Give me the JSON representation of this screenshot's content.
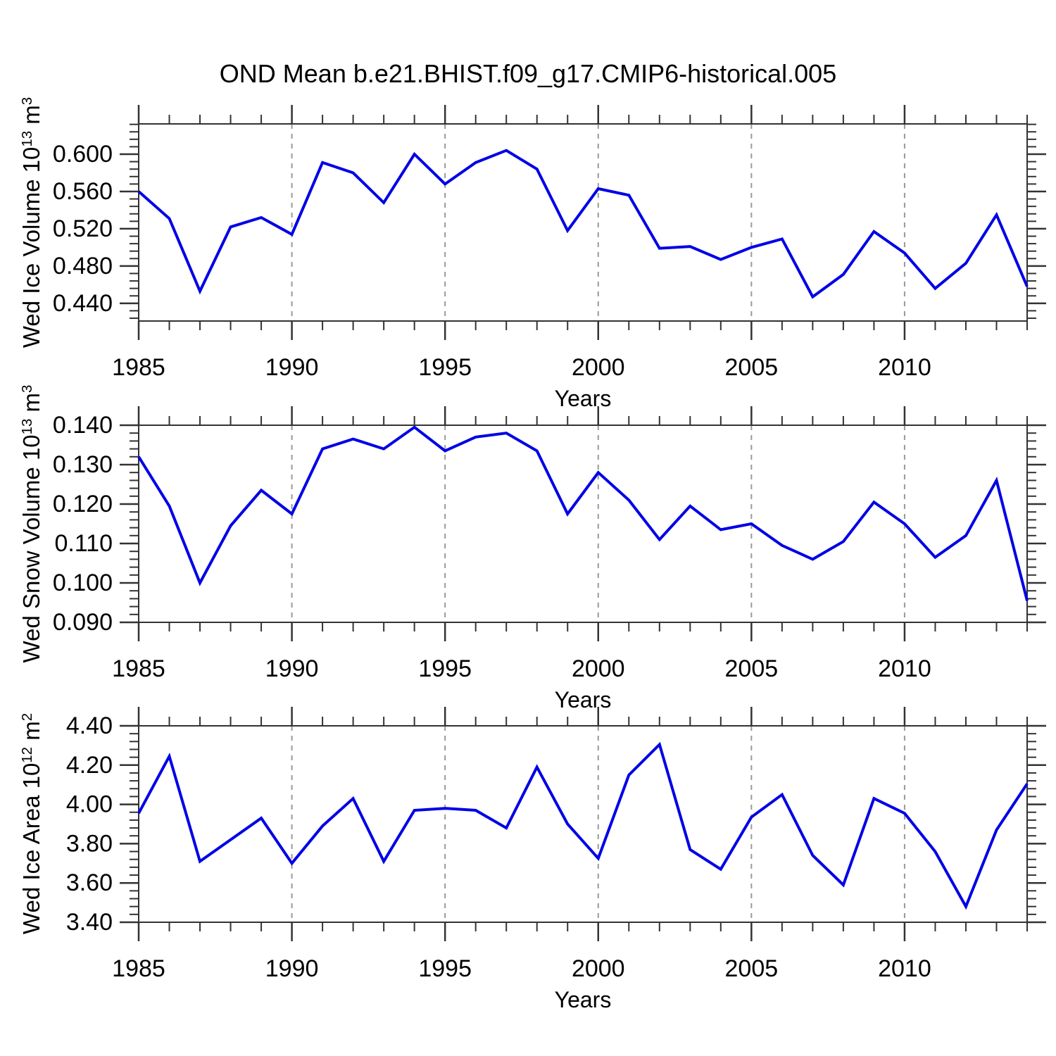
{
  "title": "OND Mean b.e21.BHIST.f09_g17.CMIP6-historical.005",
  "x_axis_label": "Years",
  "line_color": "#0000E6",
  "frame_color": "#333333",
  "gridline_color": "#999999",
  "chart_data": [
    {
      "type": "line",
      "name": "wed-ice-volume",
      "ylabel": {
        "prefix": "Wed Ice Volume 10",
        "sup": "13",
        "unit": " m",
        "unit_sup": "3"
      },
      "xlabel": "Years",
      "x": [
        1985,
        1986,
        1987,
        1988,
        1989,
        1990,
        1991,
        1992,
        1993,
        1994,
        1995,
        1996,
        1997,
        1998,
        1999,
        2000,
        2001,
        2002,
        2003,
        2004,
        2005,
        2006,
        2007,
        2008,
        2009,
        2010,
        2011,
        2012,
        2013,
        2014
      ],
      "values": [
        0.56,
        0.531,
        0.453,
        0.522,
        0.532,
        0.514,
        0.591,
        0.58,
        0.548,
        0.6,
        0.568,
        0.591,
        0.604,
        0.584,
        0.518,
        0.563,
        0.556,
        0.499,
        0.501,
        0.487,
        0.5,
        0.509,
        0.447,
        0.471,
        0.517,
        0.494,
        0.456,
        0.483,
        0.535,
        0.458
      ],
      "ylim": [
        0.421,
        0.6325
      ],
      "yticks_major": [
        0.44,
        0.48,
        0.52,
        0.56,
        0.6
      ],
      "ytick_labels": [
        "0.440",
        "0.480",
        "0.520",
        "0.560",
        "0.600"
      ],
      "yminor_step": 0.008,
      "xlim": [
        1985,
        2014
      ],
      "xticks_major": [
        1985,
        1990,
        1995,
        2000,
        2005,
        2010
      ],
      "xtick_labels": [
        "1985",
        "1990",
        "1995",
        "2000",
        "2005",
        "2010"
      ],
      "xminor_step": 1,
      "x_gridlines": [
        1990,
        1995,
        2000,
        2005,
        2010
      ],
      "grid": "dashed-vertical",
      "legend": "none"
    },
    {
      "type": "line",
      "name": "wed-snow-volume",
      "ylabel": {
        "prefix": "Wed Snow Volume 10",
        "sup": "13",
        "unit": " m",
        "unit_sup": "3"
      },
      "xlabel": "Years",
      "x": [
        1985,
        1986,
        1987,
        1988,
        1989,
        1990,
        1991,
        1992,
        1993,
        1994,
        1995,
        1996,
        1997,
        1998,
        1999,
        2000,
        2001,
        2002,
        2003,
        2004,
        2005,
        2006,
        2007,
        2008,
        2009,
        2010,
        2011,
        2012,
        2013,
        2014
      ],
      "values": [
        0.132,
        0.1195,
        0.1,
        0.1145,
        0.1235,
        0.1175,
        0.134,
        0.1365,
        0.134,
        0.1395,
        0.1335,
        0.137,
        0.138,
        0.1335,
        0.1175,
        0.128,
        0.121,
        0.111,
        0.1195,
        0.1135,
        0.115,
        0.1095,
        0.106,
        0.1105,
        0.1205,
        0.115,
        0.1065,
        0.112,
        0.126,
        0.0955
      ],
      "ylim": [
        0.09,
        0.14
      ],
      "yticks_major": [
        0.09,
        0.1,
        0.11,
        0.12,
        0.13,
        0.14
      ],
      "ytick_labels": [
        "0.090",
        "0.100",
        "0.110",
        "0.120",
        "0.130",
        "0.140"
      ],
      "yminor_step": 0.002,
      "xlim": [
        1985,
        2014
      ],
      "xticks_major": [
        1985,
        1990,
        1995,
        2000,
        2005,
        2010
      ],
      "xtick_labels": [
        "1985",
        "1990",
        "1995",
        "2000",
        "2005",
        "2010"
      ],
      "xminor_step": 1,
      "x_gridlines": [
        1990,
        1995,
        2000,
        2005,
        2010
      ],
      "grid": "dashed-vertical",
      "legend": "none"
    },
    {
      "type": "line",
      "name": "wed-ice-area",
      "ylabel": {
        "prefix": "Wed Ice Area 10",
        "sup": "12",
        "unit": " m",
        "unit_sup": "2"
      },
      "xlabel": "Years",
      "x": [
        1985,
        1986,
        1987,
        1988,
        1989,
        1990,
        1991,
        1992,
        1993,
        1994,
        1995,
        1996,
        1997,
        1998,
        1999,
        2000,
        2001,
        2002,
        2003,
        2004,
        2005,
        2006,
        2007,
        2008,
        2009,
        2010,
        2011,
        2012,
        2013,
        2014
      ],
      "values": [
        3.955,
        4.245,
        3.71,
        3.82,
        3.93,
        3.7,
        3.89,
        4.03,
        3.71,
        3.97,
        3.98,
        3.97,
        3.88,
        4.19,
        3.9,
        3.725,
        4.15,
        4.305,
        3.77,
        3.67,
        3.935,
        4.05,
        3.74,
        3.59,
        4.03,
        3.955,
        3.76,
        3.48,
        3.87,
        4.105
      ],
      "ylim": [
        3.4,
        4.4
      ],
      "yticks_major": [
        3.4,
        3.6,
        3.8,
        4.0,
        4.2,
        4.4
      ],
      "ytick_labels": [
        "3.40",
        "3.60",
        "3.80",
        "4.00",
        "4.20",
        "4.40"
      ],
      "yminor_step": 0.04,
      "xlim": [
        1985,
        2014
      ],
      "xticks_major": [
        1985,
        1990,
        1995,
        2000,
        2005,
        2010
      ],
      "xtick_labels": [
        "1985",
        "1990",
        "1995",
        "2000",
        "2005",
        "2010"
      ],
      "xminor_step": 1,
      "x_gridlines": [
        1990,
        1995,
        2000,
        2005,
        2010
      ],
      "grid": "dashed-vertical",
      "legend": "none"
    }
  ]
}
